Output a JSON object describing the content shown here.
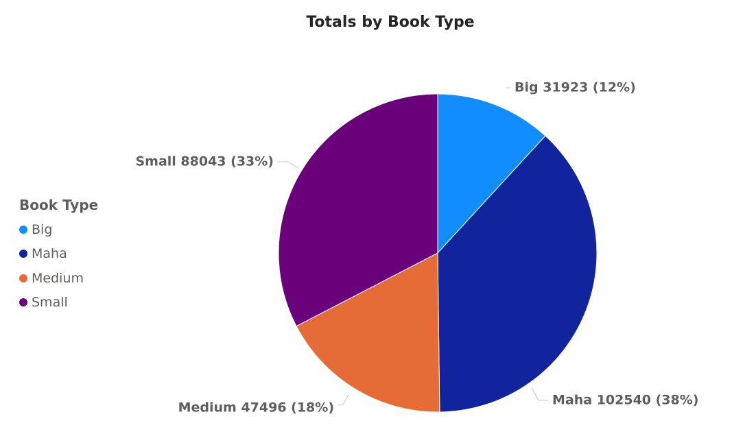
{
  "chart_data": {
    "type": "pie",
    "title": "Totals by Book Type",
    "legend_title": "Book Type",
    "legend_position": "left",
    "slices": [
      {
        "name": "Big",
        "value": 31923,
        "percent_label": "12%",
        "color": "#118dff"
      },
      {
        "name": "Maha",
        "value": 102540,
        "percent_label": "38%",
        "color": "#12239e"
      },
      {
        "name": "Medium",
        "value": 47496,
        "percent_label": "18%",
        "color": "#e66c37"
      },
      {
        "name": "Small",
        "value": 88043,
        "percent_label": "33%",
        "color": "#6b007b"
      }
    ]
  }
}
